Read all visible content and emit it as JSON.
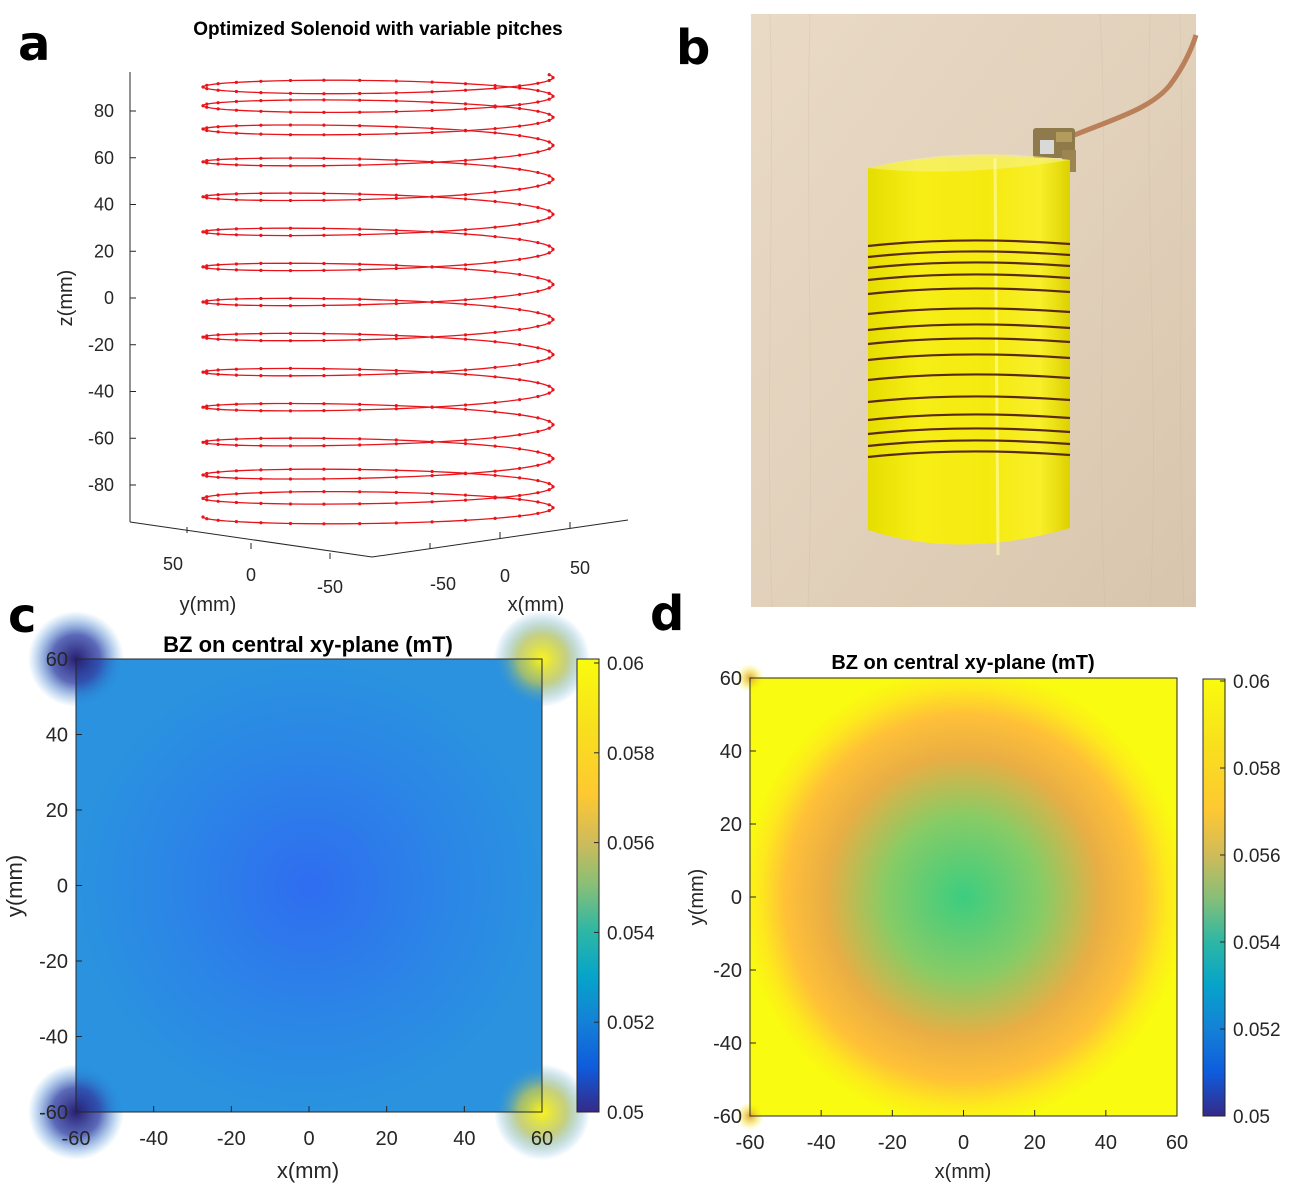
{
  "panel_labels": [
    "a",
    "b",
    "c",
    "d"
  ],
  "chart_data": [
    {
      "id": "a",
      "type": "line3d",
      "title": "Optimized Solenoid with variable pitches",
      "xlabel": "x(mm)",
      "ylabel": "y(mm)",
      "zlabel": "z(mm)",
      "x_ticks": [
        "-50",
        "0",
        "50"
      ],
      "y_ticks": [
        "50",
        "0",
        "-50"
      ],
      "z_ticks": [
        "80",
        "60",
        "40",
        "20",
        "0",
        "-20",
        "-40",
        "-60",
        "-80"
      ],
      "zlim": [
        -100,
        100
      ],
      "coil_radius_mm": 75,
      "series_color": "#e8141a",
      "turn_z_values_mm": [
        -92,
        -84,
        -74,
        -60,
        -45,
        -30,
        -15,
        0,
        15,
        30,
        45,
        60,
        74,
        84,
        92
      ]
    },
    {
      "id": "b",
      "type": "photo",
      "description_color_coil": "#f7ec1c"
    },
    {
      "id": "c",
      "type": "heatmap",
      "title": "BZ on central xy-plane (mT)",
      "xlabel": "x(mm)",
      "ylabel": "y(mm)",
      "x_ticks": [
        "-60",
        "-40",
        "-20",
        "0",
        "20",
        "40",
        "60"
      ],
      "y_ticks": [
        "60",
        "40",
        "20",
        "0",
        "-20",
        "-40",
        "-60"
      ],
      "colorbar_ticks": [
        "0.06",
        "0.058",
        "0.056",
        "0.054",
        "0.052",
        "0.05"
      ],
      "clim": [
        0.05,
        0.06
      ],
      "center_value": 0.0527,
      "edge_value": 0.0535,
      "corner_value": 0.0505
    },
    {
      "id": "d",
      "type": "heatmap",
      "title": "BZ on central xy-plane (mT)",
      "xlabel": "x(mm)",
      "ylabel": "y(mm)",
      "x_ticks": [
        "-60",
        "-40",
        "-20",
        "0",
        "20",
        "40",
        "60"
      ],
      "y_ticks": [
        "60",
        "40",
        "20",
        "0",
        "-20",
        "-40",
        "-60"
      ],
      "colorbar_ticks": [
        "0.06",
        "0.058",
        "0.056",
        "0.054",
        "0.052",
        "0.05"
      ],
      "clim": [
        0.05,
        0.06
      ],
      "center_value": 0.0558,
      "ring_value": 0.0585,
      "outer_value": 0.06
    }
  ]
}
